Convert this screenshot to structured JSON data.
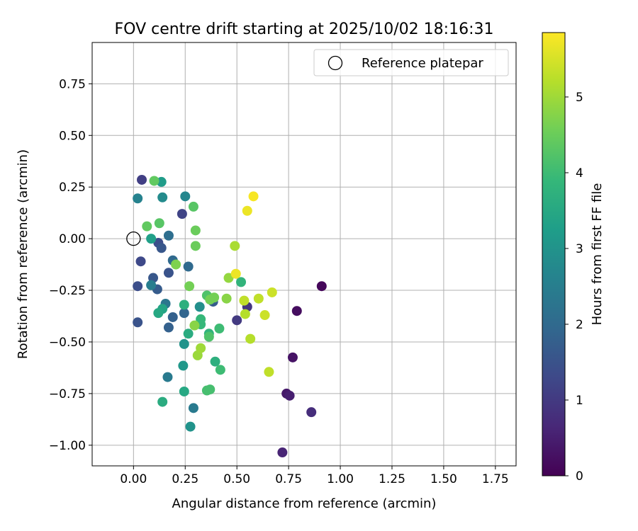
{
  "chart_data": {
    "type": "scatter",
    "title": "FOV centre drift starting at 2025/10/02 18:16:31",
    "xlabel": "Angular distance from reference (arcmin)",
    "ylabel": "Rotation from reference (arcmin)",
    "xlim": [
      -0.2,
      1.85
    ],
    "ylim": [
      -1.1,
      0.95
    ],
    "xticks": [
      0.0,
      0.25,
      0.5,
      0.75,
      1.0,
      1.25,
      1.5,
      1.75
    ],
    "xtick_labels": [
      "0.00",
      "0.25",
      "0.50",
      "0.75",
      "1.00",
      "1.25",
      "1.50",
      "1.75"
    ],
    "yticks": [
      -1.0,
      -0.75,
      -0.5,
      -0.25,
      0.0,
      0.25,
      0.5,
      0.75
    ],
    "ytick_labels": [
      "−1.00",
      "−0.75",
      "−0.50",
      "−0.25",
      "0.00",
      "0.25",
      "0.50",
      "0.75"
    ],
    "grid": true,
    "legend": {
      "position": "top-right",
      "entries": [
        "Reference platepar"
      ]
    },
    "reference_point": {
      "label": "Reference platepar",
      "x": 0.0,
      "y": 0.0
    },
    "colorbar": {
      "label": "Hours from first FF file",
      "range": [
        0,
        5.85
      ],
      "ticks": [
        0,
        1,
        2,
        3,
        4,
        5
      ],
      "tick_labels": [
        "0",
        "1",
        "2",
        "3",
        "4",
        "5"
      ],
      "colormap": "viridis"
    },
    "colormap_stops": [
      "#440154",
      "#482878",
      "#3e4989",
      "#31688e",
      "#26828e",
      "#1f9e89",
      "#35b779",
      "#6ece58",
      "#b5de2b",
      "#fde725"
    ],
    "series": [
      {
        "name": "FOV centre drift",
        "points": [
          {
            "x": 0.91,
            "y": -0.23,
            "h": 0.1
          },
          {
            "x": 0.79,
            "y": -0.35,
            "h": 0.2
          },
          {
            "x": 0.77,
            "y": -0.575,
            "h": 0.3
          },
          {
            "x": 0.74,
            "y": -0.75,
            "h": 0.4
          },
          {
            "x": 0.755,
            "y": -0.76,
            "h": 0.5
          },
          {
            "x": 0.72,
            "y": -1.035,
            "h": 0.6
          },
          {
            "x": 0.86,
            "y": -0.84,
            "h": 0.75
          },
          {
            "x": 0.55,
            "y": -0.33,
            "h": 0.9
          },
          {
            "x": 0.5,
            "y": -0.395,
            "h": 1.0
          },
          {
            "x": 0.04,
            "y": 0.285,
            "h": 1.1
          },
          {
            "x": 0.235,
            "y": 0.12,
            "h": 1.2
          },
          {
            "x": 0.035,
            "y": -0.11,
            "h": 1.3
          },
          {
            "x": 0.12,
            "y": -0.02,
            "h": 1.4
          },
          {
            "x": 0.02,
            "y": -0.23,
            "h": 1.4
          },
          {
            "x": 0.02,
            "y": -0.405,
            "h": 1.5
          },
          {
            "x": 0.17,
            "y": -0.165,
            "h": 1.5
          },
          {
            "x": 0.095,
            "y": -0.19,
            "h": 1.6
          },
          {
            "x": 0.135,
            "y": -0.045,
            "h": 1.6
          },
          {
            "x": 0.115,
            "y": -0.245,
            "h": 1.7
          },
          {
            "x": 0.385,
            "y": -0.305,
            "h": 1.7
          },
          {
            "x": 0.17,
            "y": -0.43,
            "h": 1.8
          },
          {
            "x": 0.19,
            "y": -0.38,
            "h": 1.8
          },
          {
            "x": 0.245,
            "y": -0.36,
            "h": 1.9
          },
          {
            "x": 0.265,
            "y": -0.135,
            "h": 2.0
          },
          {
            "x": 0.19,
            "y": -0.105,
            "h": 2.0
          },
          {
            "x": 0.17,
            "y": 0.015,
            "h": 2.1
          },
          {
            "x": 0.155,
            "y": -0.315,
            "h": 2.3
          },
          {
            "x": 0.29,
            "y": -0.82,
            "h": 2.4
          },
          {
            "x": 0.165,
            "y": -0.67,
            "h": 2.4
          },
          {
            "x": 0.085,
            "y": -0.225,
            "h": 2.5
          },
          {
            "x": 0.02,
            "y": 0.195,
            "h": 2.6
          },
          {
            "x": 0.25,
            "y": 0.205,
            "h": 2.7
          },
          {
            "x": 0.14,
            "y": 0.2,
            "h": 2.8
          },
          {
            "x": 0.32,
            "y": -0.33,
            "h": 2.9
          },
          {
            "x": 0.245,
            "y": -0.51,
            "h": 3.0
          },
          {
            "x": 0.275,
            "y": -0.91,
            "h": 3.0
          },
          {
            "x": 0.24,
            "y": -0.615,
            "h": 3.1
          },
          {
            "x": 0.135,
            "y": 0.275,
            "h": 3.2
          },
          {
            "x": 0.085,
            "y": 0.0,
            "h": 3.3
          },
          {
            "x": 0.14,
            "y": -0.34,
            "h": 3.4
          },
          {
            "x": 0.12,
            "y": -0.36,
            "h": 3.5
          },
          {
            "x": 0.245,
            "y": -0.74,
            "h": 3.5
          },
          {
            "x": 0.265,
            "y": -0.46,
            "h": 3.6
          },
          {
            "x": 0.14,
            "y": -0.79,
            "h": 3.6
          },
          {
            "x": 0.245,
            "y": -0.32,
            "h": 3.7
          },
          {
            "x": 0.395,
            "y": -0.595,
            "h": 3.7
          },
          {
            "x": 0.52,
            "y": -0.21,
            "h": 3.8
          },
          {
            "x": 0.365,
            "y": -0.46,
            "h": 3.8
          },
          {
            "x": 0.325,
            "y": -0.415,
            "h": 3.9
          },
          {
            "x": 0.325,
            "y": -0.39,
            "h": 3.9
          },
          {
            "x": 0.415,
            "y": -0.435,
            "h": 4.0
          },
          {
            "x": 0.42,
            "y": -0.635,
            "h": 4.0
          },
          {
            "x": 0.355,
            "y": -0.735,
            "h": 4.1
          },
          {
            "x": 0.37,
            "y": -0.73,
            "h": 4.1
          },
          {
            "x": 0.365,
            "y": -0.475,
            "h": 4.2
          },
          {
            "x": 0.355,
            "y": -0.275,
            "h": 4.2
          },
          {
            "x": 0.29,
            "y": 0.155,
            "h": 4.3
          },
          {
            "x": 0.125,
            "y": 0.075,
            "h": 4.3
          },
          {
            "x": 0.1,
            "y": 0.28,
            "h": 4.4
          },
          {
            "x": 0.065,
            "y": 0.06,
            "h": 4.4
          },
          {
            "x": 0.3,
            "y": 0.04,
            "h": 4.5
          },
          {
            "x": 0.3,
            "y": -0.035,
            "h": 4.5
          },
          {
            "x": 0.27,
            "y": -0.23,
            "h": 4.6
          },
          {
            "x": 0.37,
            "y": -0.295,
            "h": 4.6
          },
          {
            "x": 0.39,
            "y": -0.285,
            "h": 4.6
          },
          {
            "x": 0.205,
            "y": -0.125,
            "h": 4.7
          },
          {
            "x": 0.295,
            "y": -0.42,
            "h": 4.8
          },
          {
            "x": 0.45,
            "y": -0.29,
            "h": 4.8
          },
          {
            "x": 0.46,
            "y": -0.19,
            "h": 4.9
          },
          {
            "x": 0.31,
            "y": -0.565,
            "h": 4.95
          },
          {
            "x": 0.325,
            "y": -0.53,
            "h": 5.0
          },
          {
            "x": 0.49,
            "y": -0.035,
            "h": 5.1
          },
          {
            "x": 0.54,
            "y": -0.365,
            "h": 5.2
          },
          {
            "x": 0.565,
            "y": -0.485,
            "h": 5.2
          },
          {
            "x": 0.535,
            "y": -0.3,
            "h": 5.3
          },
          {
            "x": 0.605,
            "y": -0.29,
            "h": 5.3
          },
          {
            "x": 0.635,
            "y": -0.37,
            "h": 5.4
          },
          {
            "x": 0.67,
            "y": -0.26,
            "h": 5.4
          },
          {
            "x": 0.655,
            "y": -0.645,
            "h": 5.3
          },
          {
            "x": 0.495,
            "y": -0.17,
            "h": 5.7
          },
          {
            "x": 0.55,
            "y": 0.135,
            "h": 5.7
          },
          {
            "x": 0.58,
            "y": 0.205,
            "h": 5.8
          }
        ]
      }
    ]
  }
}
